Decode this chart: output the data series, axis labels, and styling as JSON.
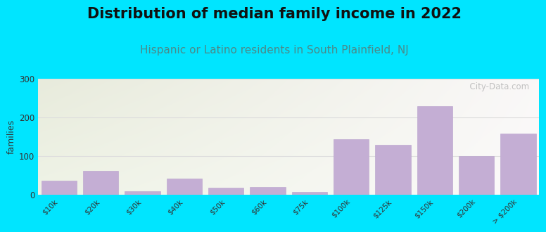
{
  "title": "Distribution of median family income in 2022",
  "subtitle": "Hispanic or Latino residents in South Plainfield, NJ",
  "ylabel": "families",
  "background_outer": "#00e5ff",
  "bar_color": "#c4aed4",
  "bar_edge_color": "#b8a0cc",
  "title_fontsize": 15,
  "subtitle_fontsize": 11,
  "subtitle_color": "#4a8a8a",
  "title_color": "#111111",
  "categories": [
    "$10k",
    "$20k",
    "$30k",
    "$40k",
    "$50k",
    "$60k",
    "$75k",
    "$100k",
    "$125k",
    "$150k",
    "$200k",
    "> $200k"
  ],
  "values": [
    35,
    62,
    8,
    42,
    18,
    20,
    6,
    143,
    128,
    228,
    100,
    158
  ],
  "ylim": [
    0,
    300
  ],
  "yticks": [
    0,
    100,
    200,
    300
  ],
  "watermark": "  City-Data.com",
  "bg_colors_left": [
    "#e8f5dc",
    "#f5fbee"
  ],
  "bg_colors_right": [
    "#f0ece8",
    "#faf8f6"
  ],
  "grid_color": "#dddddd"
}
